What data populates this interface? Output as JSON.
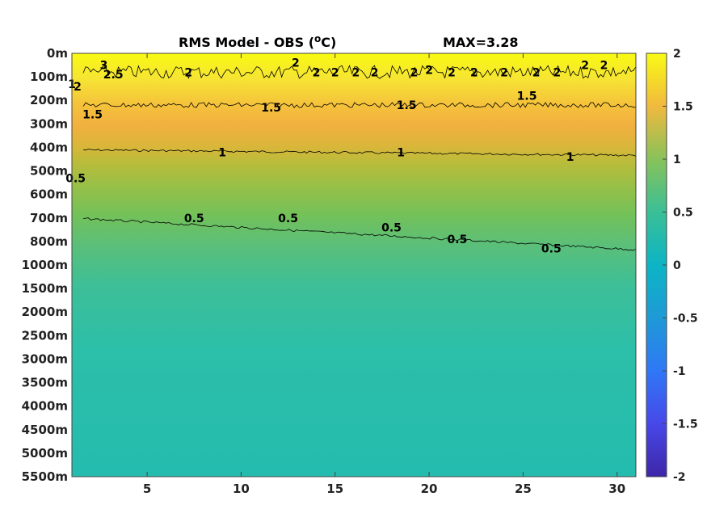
{
  "chart_data": {
    "type": "heatmap",
    "title": "RMS Model - OBS (",
    "title_unit": "C)",
    "title_degree": "o",
    "max_label": "MAX=3.28",
    "colormap": "parula",
    "x_ticks": [
      5,
      10,
      15,
      20,
      25,
      30
    ],
    "xlim": [
      1,
      31
    ],
    "depth_levels": [
      "0m",
      "100m",
      "200m",
      "300m",
      "400m",
      "500m",
      "600m",
      "700m",
      "800m",
      "1000m",
      "1500m",
      "2000m",
      "2500m",
      "3000m",
      "3500m",
      "4000m",
      "4500m",
      "5000m",
      "5500m"
    ],
    "colorbar": {
      "ticks": [
        2,
        1.5,
        1,
        0.5,
        0,
        -0.5,
        -1,
        -1.5,
        -2
      ],
      "tick_labels": [
        "2",
        "1.5",
        "1",
        "0.5",
        "0",
        "-0.5",
        "-1",
        "-1.5",
        "-2"
      ],
      "range": [
        -2,
        2
      ]
    },
    "contour_levels": [
      0.5,
      1,
      1.5,
      2,
      2.5,
      3
    ],
    "approx_contour_depth_level_index": {
      "0.5": 7.0,
      "1": 4.1,
      "1.5": 2.2,
      "2": 0.8
    },
    "contour_labels": [
      {
        "text": "0.5",
        "x": 7.5,
        "level_index": 7.0
      },
      {
        "text": "0.5",
        "x": 12.5,
        "level_index": 7.0
      },
      {
        "text": "0.5",
        "x": 18.0,
        "level_index": 7.4
      },
      {
        "text": "0.5",
        "x": 21.5,
        "level_index": 7.9
      },
      {
        "text": "0.5",
        "x": 26.5,
        "level_index": 8.3
      },
      {
        "text": "0.5",
        "x": 1.2,
        "level_index": 5.3
      },
      {
        "text": "1",
        "x": 9.0,
        "level_index": 4.2
      },
      {
        "text": "1",
        "x": 18.5,
        "level_index": 4.2
      },
      {
        "text": "1",
        "x": 27.5,
        "level_index": 4.4
      },
      {
        "text": "1.5",
        "x": 2.1,
        "level_index": 2.6
      },
      {
        "text": "1.5",
        "x": 11.6,
        "level_index": 2.3
      },
      {
        "text": "1.5",
        "x": 18.8,
        "level_index": 2.2
      },
      {
        "text": "1.5",
        "x": 25.2,
        "level_index": 1.8
      },
      {
        "text": "2",
        "x": 7.2,
        "level_index": 0.8
      },
      {
        "text": "2",
        "x": 12.9,
        "level_index": 0.4
      },
      {
        "text": "2",
        "x": 14.0,
        "level_index": 0.8
      },
      {
        "text": "2",
        "x": 15.0,
        "level_index": 0.8
      },
      {
        "text": "2",
        "x": 16.1,
        "level_index": 0.8
      },
      {
        "text": "2",
        "x": 17.1,
        "level_index": 0.8
      },
      {
        "text": "2",
        "x": 19.2,
        "level_index": 0.8
      },
      {
        "text": "2",
        "x": 20.0,
        "level_index": 0.7
      },
      {
        "text": "2",
        "x": 21.2,
        "level_index": 0.8
      },
      {
        "text": "2",
        "x": 22.4,
        "level_index": 0.8
      },
      {
        "text": "2",
        "x": 24.0,
        "level_index": 0.8
      },
      {
        "text": "2",
        "x": 25.7,
        "level_index": 0.8
      },
      {
        "text": "2",
        "x": 26.8,
        "level_index": 0.8
      },
      {
        "text": "2",
        "x": 28.3,
        "level_index": 0.5
      },
      {
        "text": "2",
        "x": 29.3,
        "level_index": 0.5
      },
      {
        "text": "2.5",
        "x": 3.2,
        "level_index": 0.9
      },
      {
        "text": "3",
        "x": 2.7,
        "level_index": 0.5
      },
      {
        "text": "2",
        "x": 1.3,
        "level_index": 1.4
      },
      {
        "text": "1",
        "x": 1.0,
        "level_index": 1.3
      }
    ]
  }
}
